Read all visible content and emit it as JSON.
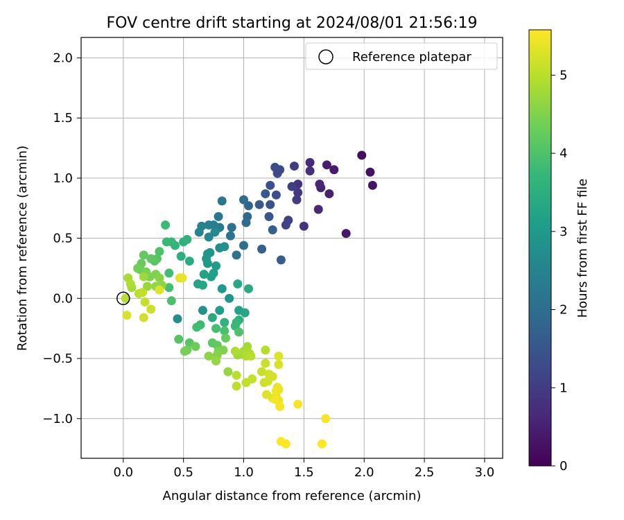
{
  "chart_data": {
    "type": "scatter",
    "title": "FOV centre drift starting at 2024/08/01 21:56:19",
    "xlabel": "Angular distance from reference (arcmin)",
    "ylabel": "Rotation from reference (arcmin)",
    "xlim": [
      -0.35,
      3.15
    ],
    "ylim": [
      -1.33,
      2.17
    ],
    "xticks": [
      "0.0",
      "0.5",
      "1.0",
      "1.5",
      "2.0",
      "2.5",
      "3.0"
    ],
    "xtick_values": [
      0,
      0.5,
      1,
      1.5,
      2,
      2.5,
      3
    ],
    "yticks": [
      "2.0",
      "1.5",
      "1.0",
      "0.5",
      "0.0",
      "−0.5",
      "−1.0"
    ],
    "ytick_values": [
      2,
      1.5,
      1,
      0.5,
      0,
      -0.5,
      -1
    ],
    "grid": true,
    "legend": {
      "placement": "top-right",
      "entries": [
        {
          "label": "Reference platepar",
          "marker": "open-circle"
        }
      ]
    },
    "reference": {
      "x": 0,
      "y": 0
    },
    "colorbar": {
      "label": "Hours from first FF file",
      "range": [
        0,
        5.58
      ],
      "ticks": [
        "0",
        "1",
        "2",
        "3",
        "4",
        "5"
      ],
      "tick_values": [
        0,
        1,
        2,
        3,
        4,
        5
      ],
      "colormap": [
        "#440154",
        "#482878",
        "#3e4989",
        "#31688e",
        "#26828e",
        "#1f9e89",
        "#35b779",
        "#6ece58",
        "#b5de2b",
        "#fde725"
      ]
    },
    "points": [
      [
        1.98,
        1.19,
        0.2
      ],
      [
        2.05,
        1.05,
        0.25
      ],
      [
        2.07,
        0.94,
        0.3
      ],
      [
        1.85,
        0.54,
        0.35
      ],
      [
        1.75,
        1.07,
        0.4
      ],
      [
        1.69,
        1.11,
        0.45
      ],
      [
        1.71,
        0.87,
        0.5
      ],
      [
        1.64,
        0.92,
        0.55
      ],
      [
        1.63,
        0.95,
        0.6
      ],
      [
        1.62,
        0.74,
        0.65
      ],
      [
        1.55,
        1.13,
        0.7
      ],
      [
        1.55,
        1.06,
        0.75
      ],
      [
        1.5,
        0.6,
        0.8
      ],
      [
        1.45,
        0.95,
        0.85
      ],
      [
        1.45,
        0.88,
        0.9
      ],
      [
        1.44,
        0.82,
        0.95
      ],
      [
        1.42,
        1.1,
        1.0
      ],
      [
        1.4,
        0.93,
        1.05
      ],
      [
        1.37,
        0.65,
        1.1
      ],
      [
        1.35,
        0.61,
        1.15
      ],
      [
        1.3,
        1.07,
        1.2
      ],
      [
        1.28,
        1.04,
        1.25
      ],
      [
        1.26,
        1.09,
        1.3
      ],
      [
        1.27,
        0.86,
        1.35
      ],
      [
        1.22,
        0.94,
        1.4
      ],
      [
        1.22,
        0.78,
        1.45
      ],
      [
        1.21,
        0.68,
        1.5
      ],
      [
        1.18,
        0.87,
        1.55
      ],
      [
        1.13,
        0.78,
        1.6
      ],
      [
        1.31,
        0.32,
        1.65
      ],
      [
        1.24,
        0.57,
        1.7
      ],
      [
        1.15,
        0.41,
        1.75
      ],
      [
        1.04,
        0.77,
        1.8
      ],
      [
        1.03,
        0.68,
        1.85
      ],
      [
        1.02,
        0.63,
        1.9
      ],
      [
        1.0,
        0.82,
        1.95
      ],
      [
        1.0,
        0.44,
        2.0
      ],
      [
        0.9,
        0.59,
        2.05
      ],
      [
        0.94,
        0.36,
        2.1
      ],
      [
        0.89,
        0.52,
        2.15
      ],
      [
        0.82,
        0.81,
        2.2
      ],
      [
        0.79,
        0.68,
        2.25
      ],
      [
        0.8,
        0.59,
        2.3
      ],
      [
        0.78,
        0.58,
        2.35
      ],
      [
        0.75,
        0.61,
        2.4
      ],
      [
        0.71,
        0.61,
        2.45
      ],
      [
        0.65,
        0.6,
        2.5
      ],
      [
        0.63,
        0.55,
        2.55
      ],
      [
        0.71,
        0.51,
        2.6
      ],
      [
        0.76,
        0.55,
        2.65
      ],
      [
        0.8,
        0.42,
        2.7
      ],
      [
        0.84,
        0.43,
        2.8
      ],
      [
        0.72,
        0.38,
        2.85
      ],
      [
        0.7,
        0.37,
        2.9
      ],
      [
        0.69,
        0.33,
        2.95
      ],
      [
        0.7,
        0.29,
        3.0
      ],
      [
        0.77,
        0.27,
        3.05
      ],
      [
        0.75,
        0.21,
        3.1
      ],
      [
        0.73,
        0.18,
        3.15
      ],
      [
        0.67,
        0.2,
        3.2
      ],
      [
        0.62,
        0.12,
        3.25
      ],
      [
        0.66,
        0.11,
        3.3
      ],
      [
        0.95,
        0.12,
        3.35
      ],
      [
        1.04,
        0.08,
        3.4
      ],
      [
        0.55,
        0.31,
        3.45
      ],
      [
        0.48,
        0.35,
        3.5
      ],
      [
        0.5,
        0.47,
        3.55
      ],
      [
        0.53,
        0.49,
        3.6
      ],
      [
        0.43,
        0.44,
        3.65
      ],
      [
        0.4,
        0.47,
        3.7
      ],
      [
        0.36,
        0.47,
        3.75
      ],
      [
        0.35,
        0.61,
        3.8
      ],
      [
        0.38,
        0.21,
        3.85
      ],
      [
        0.38,
        0.09,
        3.9
      ],
      [
        0.4,
        -0.02,
        3.95
      ],
      [
        0.3,
        0.39,
        4.0
      ],
      [
        0.28,
        0.33,
        4.05
      ],
      [
        0.26,
        0.31,
        4.1
      ],
      [
        0.23,
        0.33,
        4.15
      ],
      [
        0.17,
        0.36,
        4.2
      ],
      [
        0.15,
        0.29,
        4.25
      ],
      [
        0.14,
        0.24,
        4.3
      ],
      [
        0.12,
        0.25,
        4.35
      ],
      [
        0.19,
        0.22,
        4.4
      ],
      [
        0.22,
        0.18,
        4.45
      ],
      [
        0.27,
        0.2,
        4.5
      ],
      [
        0.3,
        0.17,
        4.55
      ],
      [
        0.32,
        0.11,
        4.6
      ],
      [
        0.27,
        0.1,
        4.65
      ],
      [
        0.2,
        0.1,
        4.7
      ],
      [
        0.17,
        0.18,
        4.75
      ],
      [
        0.07,
        0.09,
        4.8
      ],
      [
        0.04,
        0.17,
        4.85
      ],
      [
        0.06,
        0.12,
        4.9
      ],
      [
        0.02,
        0.0,
        4.95
      ],
      [
        0.13,
        0.04,
        5.0
      ],
      [
        0.16,
        0.05,
        5.05
      ],
      [
        0.18,
        -0.03,
        5.1
      ],
      [
        0.23,
        -0.09,
        5.15
      ],
      [
        0.17,
        -0.16,
        5.2
      ],
      [
        0.03,
        -0.14,
        5.25
      ],
      [
        0.3,
        0.07,
        5.3
      ],
      [
        0.47,
        0.17,
        5.35
      ],
      [
        0.49,
        0.17,
        5.4
      ],
      [
        0.45,
        -0.17,
        2.75
      ],
      [
        0.82,
        0.08,
        3.0
      ],
      [
        0.88,
        0.0,
        2.9
      ],
      [
        0.66,
        -0.1,
        2.8
      ],
      [
        0.8,
        -0.1,
        3.1
      ],
      [
        0.96,
        -0.1,
        3.2
      ],
      [
        1.01,
        -0.12,
        3.3
      ],
      [
        0.74,
        -0.16,
        3.4
      ],
      [
        0.96,
        -0.18,
        3.5
      ],
      [
        0.84,
        -0.2,
        3.6
      ],
      [
        0.94,
        -0.2,
        3.7
      ],
      [
        0.93,
        -0.23,
        3.75
      ],
      [
        0.64,
        -0.22,
        3.8
      ],
      [
        0.61,
        -0.24,
        3.85
      ],
      [
        0.77,
        -0.25,
        3.9
      ],
      [
        0.84,
        -0.27,
        3.95
      ],
      [
        0.96,
        -0.28,
        4.0
      ],
      [
        0.46,
        -0.34,
        4.05
      ],
      [
        0.55,
        -0.37,
        4.1
      ],
      [
        0.74,
        -0.37,
        4.15
      ],
      [
        0.78,
        -0.39,
        4.2
      ],
      [
        0.85,
        -0.33,
        4.25
      ],
      [
        0.6,
        -0.4,
        4.3
      ],
      [
        0.53,
        -0.43,
        4.35
      ],
      [
        0.51,
        -0.44,
        4.4
      ],
      [
        0.79,
        -0.44,
        4.45
      ],
      [
        0.83,
        -0.43,
        4.5
      ],
      [
        0.78,
        -0.47,
        4.55
      ],
      [
        0.71,
        -0.48,
        4.6
      ],
      [
        0.77,
        -0.52,
        4.65
      ],
      [
        0.87,
        -0.61,
        4.7
      ],
      [
        0.95,
        -0.47,
        4.75
      ],
      [
        0.99,
        -0.46,
        4.8
      ],
      [
        1.03,
        -0.4,
        4.82
      ],
      [
        1.0,
        -0.44,
        4.85
      ],
      [
        1.05,
        -0.46,
        4.88
      ],
      [
        0.93,
        -0.44,
        4.9
      ],
      [
        1.02,
        -0.48,
        4.92
      ],
      [
        1.18,
        -0.43,
        4.95
      ],
      [
        1.06,
        -0.48,
        4.97
      ],
      [
        0.94,
        -0.64,
        5.0
      ],
      [
        0.94,
        -0.73,
        5.02
      ],
      [
        1.02,
        -0.7,
        5.05
      ],
      [
        1.07,
        -0.67,
        5.08
      ],
      [
        1.15,
        -0.61,
        5.1
      ],
      [
        1.18,
        -0.54,
        5.12
      ],
      [
        1.17,
        -0.7,
        5.15
      ],
      [
        1.21,
        -0.63,
        5.18
      ],
      [
        1.2,
        -0.69,
        5.2
      ],
      [
        1.24,
        -0.65,
        5.22
      ],
      [
        1.29,
        -0.55,
        5.25
      ],
      [
        1.29,
        -0.48,
        5.28
      ],
      [
        1.19,
        -0.8,
        5.3
      ],
      [
        1.24,
        -0.83,
        5.32
      ],
      [
        1.27,
        -0.82,
        5.35
      ],
      [
        1.28,
        -0.74,
        5.38
      ],
      [
        1.29,
        -0.76,
        5.4
      ],
      [
        1.29,
        -0.85,
        5.42
      ],
      [
        1.27,
        -0.77,
        5.45
      ],
      [
        1.26,
        -0.84,
        5.48
      ],
      [
        1.3,
        -0.9,
        5.5
      ],
      [
        1.45,
        -0.88,
        5.52
      ],
      [
        1.68,
        -1.0,
        5.54
      ],
      [
        1.31,
        -1.19,
        5.56
      ],
      [
        1.35,
        -1.21,
        5.57
      ],
      [
        1.65,
        -1.21,
        5.58
      ]
    ]
  }
}
